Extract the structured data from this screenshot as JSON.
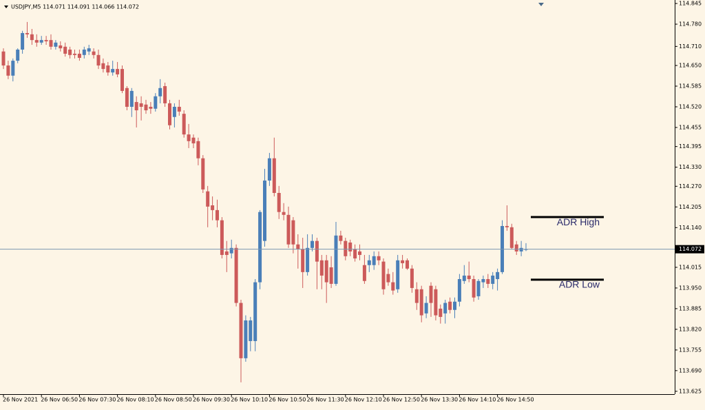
{
  "chart_data": {
    "type": "candlestick",
    "header": "USDJPY,M5  114.071 114.091 114.066 114.072",
    "categories": [
      "26 Nov 2021",
      null,
      null,
      null,
      null,
      null,
      null,
      null,
      "26 Nov 06:50",
      null,
      null,
      null,
      null,
      null,
      null,
      null,
      "26 Nov 07:30",
      null,
      null,
      null,
      null,
      null,
      null,
      null,
      "26 Nov 08:10",
      null,
      null,
      null,
      null,
      null,
      null,
      null,
      "26 Nov 08:50",
      null,
      null,
      null,
      null,
      null,
      null,
      null,
      "26 Nov 09:30",
      null,
      null,
      null,
      null,
      null,
      null,
      null,
      "26 Nov 10:10",
      null,
      null,
      null,
      null,
      null,
      null,
      null,
      "26 Nov 10:50",
      null,
      null,
      null,
      null,
      null,
      null,
      null,
      "26 Nov 11:30",
      null,
      null,
      null,
      null,
      null,
      null,
      null,
      "26 Nov 12:10",
      null,
      null,
      null,
      null,
      null,
      null,
      null,
      "26 Nov 12:50",
      null,
      null,
      null,
      null,
      null,
      null,
      null,
      "26 Nov 13:30",
      null,
      null,
      null,
      null,
      null,
      null,
      null,
      "26 Nov 14:10",
      null,
      null,
      null,
      null,
      null,
      null,
      null,
      "26 Nov 14:50",
      null,
      null,
      null,
      null,
      null,
      null
    ],
    "open": [
      114.694,
      114.65,
      114.618,
      114.665,
      114.7,
      114.752,
      114.748,
      114.73,
      114.722,
      114.73,
      114.73,
      114.709,
      114.713,
      114.709,
      114.7,
      114.687,
      114.687,
      114.683,
      114.694,
      114.694,
      114.683,
      114.657,
      114.65,
      114.628,
      114.639,
      114.639,
      114.579,
      114.52,
      114.535,
      114.531,
      114.527,
      114.52,
      114.514,
      114.553,
      114.585,
      114.531,
      114.488,
      114.52,
      114.498,
      114.433,
      114.423,
      114.412,
      114.358,
      114.254,
      114.21,
      114.195,
      114.163,
      114.065,
      114.059,
      114.076,
      113.903,
      113.729,
      113.783,
      113.783,
      113.968,
      114.098,
      114.288,
      114.358,
      114.249,
      114.189,
      114.18,
      114.163,
      114.087,
      114.072,
      114.0,
      114.076,
      114.098,
      114.037,
      114.037,
      114.015,
      113.963,
      114.115,
      114.098,
      114.093,
      114.072,
      114.065,
      114.022,
      114.022,
      114.022,
      114.05,
      114.033,
      113.994,
      113.968,
      113.946,
      114.037,
      114.037,
      114.011,
      113.946,
      113.946,
      113.87,
      113.957,
      113.946,
      113.885,
      113.87,
      113.907,
      113.881,
      113.907,
      113.972,
      113.989,
      113.978,
      113.924,
      113.968,
      113.978,
      113.963,
      113.978,
      114.0,
      114.145,
      114.141,
      114.087,
      114.065,
      114.071
    ],
    "high": [
      114.704,
      114.665,
      114.672,
      114.704,
      114.759,
      114.787,
      114.765,
      114.748,
      114.743,
      114.743,
      114.748,
      114.73,
      114.726,
      114.722,
      114.709,
      114.7,
      114.7,
      114.709,
      114.715,
      114.704,
      114.7,
      114.672,
      114.661,
      114.665,
      114.661,
      114.65,
      114.585,
      114.579,
      114.553,
      114.553,
      114.542,
      114.535,
      114.563,
      114.607,
      114.596,
      114.542,
      114.531,
      114.542,
      114.509,
      114.466,
      114.433,
      114.423,
      114.368,
      114.271,
      114.238,
      114.228,
      114.173,
      114.098,
      114.102,
      114.087,
      113.913,
      113.864,
      113.859,
      113.978,
      114.195,
      114.325,
      114.375,
      114.423,
      114.271,
      114.217,
      114.206,
      114.173,
      114.119,
      114.108,
      114.119,
      114.119,
      114.108,
      114.054,
      114.054,
      114.05,
      114.158,
      114.13,
      114.108,
      114.102,
      114.087,
      114.087,
      114.054,
      114.054,
      114.065,
      114.065,
      114.043,
      114.011,
      114.0,
      114.054,
      114.054,
      114.043,
      114.022,
      113.968,
      113.957,
      113.924,
      113.968,
      113.957,
      113.898,
      113.913,
      113.92,
      113.92,
      113.994,
      114.022,
      114.033,
      113.989,
      113.978,
      113.989,
      113.994,
      114.0,
      114.011,
      114.163,
      114.21,
      114.152,
      114.098,
      114.098,
      114.091
    ],
    "low": [
      114.639,
      114.607,
      114.6,
      114.657,
      114.687,
      114.737,
      114.715,
      114.709,
      114.715,
      114.715,
      114.7,
      114.7,
      114.694,
      114.678,
      114.672,
      114.672,
      114.665,
      114.672,
      114.683,
      114.672,
      114.639,
      114.628,
      114.618,
      114.618,
      114.613,
      114.563,
      114.509,
      114.488,
      114.455,
      114.477,
      114.498,
      114.498,
      114.505,
      114.531,
      114.52,
      114.449,
      114.455,
      114.492,
      114.423,
      114.39,
      114.39,
      114.336,
      114.249,
      114.141,
      114.163,
      114.141,
      114.043,
      114.0,
      114.043,
      113.892,
      113.653,
      113.718,
      113.751,
      113.751,
      113.946,
      114.08,
      114.271,
      114.238,
      114.167,
      114.163,
      114.076,
      114.059,
      114.011,
      113.95,
      113.989,
      114.065,
      113.946,
      113.946,
      113.903,
      113.95,
      113.957,
      114.087,
      114.037,
      114.05,
      114.033,
      114.037,
      113.963,
      114.0,
      114.007,
      114.022,
      113.929,
      113.957,
      113.929,
      113.935,
      114.011,
      114.007,
      113.935,
      113.881,
      113.842,
      113.855,
      113.859,
      113.848,
      113.838,
      113.838,
      113.87,
      113.855,
      113.892,
      113.963,
      113.968,
      113.907,
      113.913,
      113.95,
      113.95,
      113.946,
      113.942,
      113.994,
      114.13,
      114.072,
      114.054,
      114.05,
      114.066
    ],
    "close": [
      114.65,
      114.618,
      114.665,
      114.7,
      114.752,
      114.748,
      114.73,
      114.722,
      114.73,
      114.726,
      114.709,
      114.722,
      114.704,
      114.687,
      114.683,
      114.683,
      114.674,
      114.7,
      114.704,
      114.683,
      114.65,
      114.639,
      114.628,
      114.639,
      114.622,
      114.57,
      114.52,
      114.57,
      114.509,
      114.52,
      114.509,
      114.514,
      114.553,
      114.579,
      114.531,
      114.462,
      114.52,
      114.505,
      114.433,
      114.412,
      114.405,
      114.358,
      114.26,
      114.206,
      114.195,
      114.163,
      114.054,
      114.054,
      114.076,
      113.903,
      113.729,
      113.848,
      113.848,
      113.968,
      114.189,
      114.288,
      114.358,
      114.249,
      114.189,
      114.18,
      114.087,
      114.087,
      114.072,
      114.0,
      114.076,
      114.098,
      114.033,
      113.989,
      113.968,
      113.963,
      114.115,
      114.098,
      114.05,
      114.065,
      114.043,
      114.054,
      113.972,
      114.037,
      114.05,
      114.037,
      113.946,
      113.968,
      113.942,
      114.037,
      114.028,
      114.011,
      113.95,
      113.903,
      113.864,
      113.903,
      113.903,
      113.864,
      113.859,
      113.903,
      113.881,
      113.907,
      113.978,
      113.989,
      113.978,
      113.92,
      113.972,
      113.978,
      113.963,
      113.989,
      114.0,
      114.145,
      114.141,
      114.076,
      114.065,
      114.076,
      114.072
    ],
    "up_color": "#4a7fb8",
    "down_color": "#cc5a5a",
    "current_price": 114.072,
    "levels": [
      {
        "name": "ADR High",
        "value": 114.173
      },
      {
        "name": "ADR Low",
        "value": 113.976
      }
    ],
    "ylim": [
      113.616,
      114.856
    ],
    "yticks": [
      114.845,
      {
        "value": 114.78,
        "label": "114.780"
      },
      {
        "value": 114.71,
        "label": "114.710"
      },
      {
        "value": 114.65,
        "label": "114.650"
      },
      114.585,
      {
        "value": 114.52,
        "label": "114.520"
      },
      114.455,
      114.395,
      {
        "value": 114.33,
        "label": "114.330"
      },
      {
        "value": 114.27,
        "label": "114.270"
      },
      114.205,
      {
        "value": 114.14,
        "label": "114.140"
      },
      114.015,
      {
        "value": 113.95,
        "label": "113.950"
      },
      113.885,
      {
        "value": 113.82,
        "label": "113.820"
      },
      113.755,
      {
        "value": 113.69,
        "label": "113.690"
      },
      113.625
    ]
  }
}
